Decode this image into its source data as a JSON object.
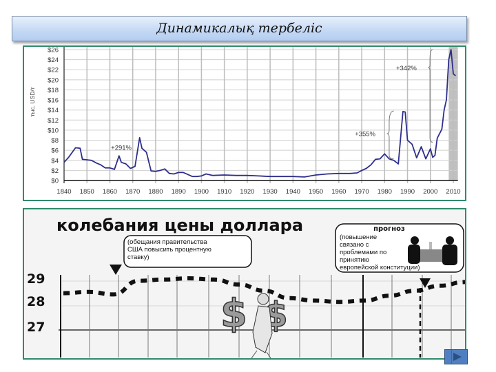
{
  "slide": {
    "title": "Динамикалық тербеліс",
    "nav_next_label": "next"
  },
  "chart_data": [
    {
      "type": "line",
      "title": "",
      "xlabel": "",
      "ylabel": "тыс. USD/т",
      "ylim": [
        0,
        26
      ],
      "xlim": [
        1840,
        2012
      ],
      "grid": true,
      "y_ticks": [
        "$0",
        "$2",
        "$4",
        "$6",
        "$8",
        "$10",
        "$12",
        "$14",
        "$16",
        "$18",
        "$20",
        "$22",
        "$24",
        "$26"
      ],
      "x_ticks": [
        "1840",
        "1850",
        "1860",
        "1870",
        "1880",
        "1890",
        "1900",
        "1910",
        "1920",
        "1930",
        "1940",
        "1950",
        "1960",
        "1970",
        "1980",
        "1990",
        "2000",
        "2010"
      ],
      "series": [
        {
          "name": "price",
          "color": "#2e2e8a",
          "x": [
            1840,
            1842,
            1845,
            1847,
            1848,
            1850,
            1852,
            1854,
            1856,
            1858,
            1860,
            1862,
            1864,
            1865,
            1867,
            1869,
            1871,
            1873,
            1874,
            1876,
            1878,
            1880,
            1882,
            1884,
            1886,
            1888,
            1890,
            1892,
            1894,
            1896,
            1898,
            1900,
            1902,
            1905,
            1910,
            1915,
            1920,
            1925,
            1930,
            1935,
            1940,
            1945,
            1950,
            1955,
            1960,
            1965,
            1968,
            1970,
            1972,
            1974,
            1976,
            1978,
            1980,
            1982,
            1984,
            1986,
            1988,
            1989,
            1990,
            1992,
            1994,
            1996,
            1998,
            2000,
            2001,
            2002,
            2003,
            2005,
            2006,
            2007,
            2008,
            2009,
            2010,
            2011
          ],
          "y": [
            3.6,
            4.6,
            6.5,
            6.4,
            4.2,
            4.1,
            4.0,
            3.5,
            3.1,
            2.5,
            2.5,
            2.2,
            4.9,
            3.6,
            3.3,
            2.4,
            2.8,
            8.5,
            6.4,
            5.6,
            1.9,
            1.8,
            2.0,
            2.3,
            1.4,
            1.3,
            1.6,
            1.6,
            1.2,
            0.8,
            0.8,
            0.9,
            1.3,
            1.0,
            1.1,
            1.0,
            1.0,
            0.9,
            0.8,
            0.8,
            0.8,
            0.7,
            1.1,
            1.3,
            1.4,
            1.4,
            1.5,
            2.0,
            2.4,
            3.1,
            4.2,
            4.3,
            5.3,
            4.3,
            4.0,
            3.3,
            13.7,
            13.6,
            8.0,
            7.2,
            4.5,
            6.7,
            4.3,
            6.3,
            4.6,
            5.0,
            8.4,
            10.2,
            14.0,
            16.0,
            24.0,
            26.0,
            21.2,
            20.8
          ]
        }
      ],
      "annotations": [
        {
          "text": "+291%",
          "x": 1862,
          "y": 6.6
        },
        {
          "text": "+355%",
          "x": 1977,
          "y": 9.3
        },
        {
          "text": "+342%",
          "x": 2001,
          "y": 22.4
        }
      ],
      "shaded_region": {
        "from": 2008,
        "to": 2012,
        "color": "#c0c0c0"
      }
    },
    {
      "type": "line",
      "title": "колебания цены доллара",
      "xlabel": "",
      "ylabel": "",
      "y_ticks": [
        "29",
        "28",
        "27"
      ],
      "ylim": [
        26.5,
        29.5
      ],
      "grid": true,
      "series": [
        {
          "name": "dollar rate",
          "style": "dashed",
          "x": [
            0,
            1,
            2,
            3,
            4,
            5,
            6,
            7,
            8,
            9,
            10,
            11,
            12,
            13,
            14,
            15,
            16
          ],
          "y": [
            28.4,
            28.45,
            28.35,
            28.9,
            28.95,
            29.0,
            28.95,
            28.75,
            28.5,
            28.2,
            28.1,
            28.05,
            28.1,
            28.3,
            28.5,
            28.7,
            28.85
          ]
        }
      ],
      "annotations": [
        {
          "text": "(обещания правительства США повысить процентную ставку)",
          "marker": "triangle-down",
          "x": 2
        },
        {
          "title": "прогноз",
          "text": "(повышение связано с проблемами по принятию европейской конституции)",
          "marker": "triangle-down",
          "x": 13
        }
      ]
    }
  ]
}
